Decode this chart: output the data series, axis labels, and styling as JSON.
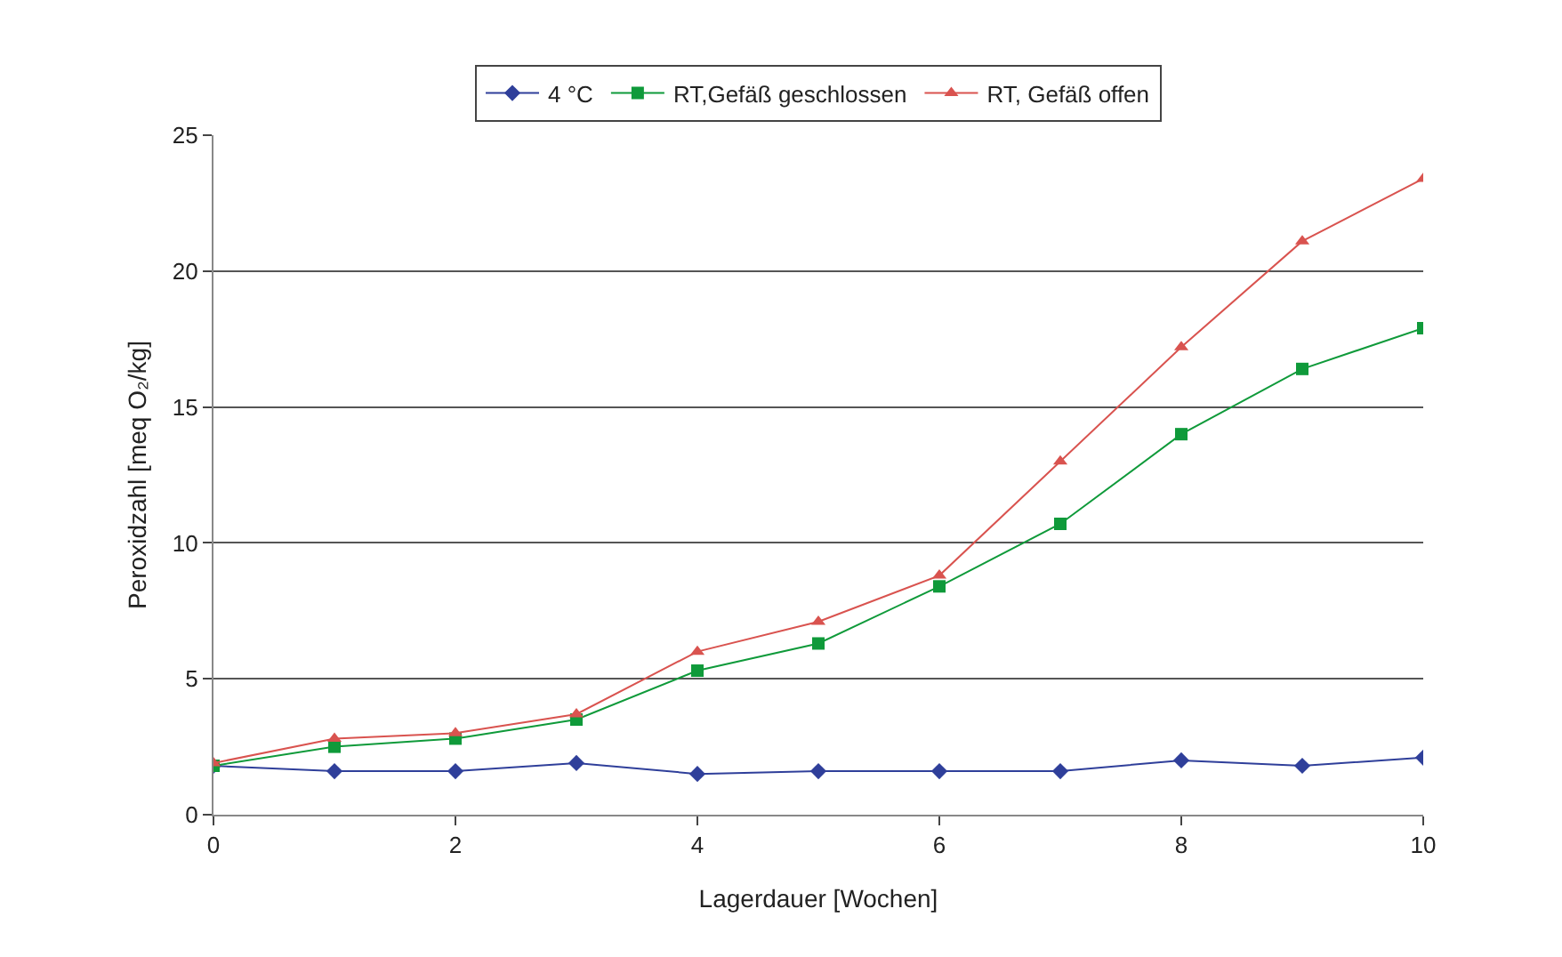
{
  "chart_data": {
    "type": "line",
    "xlabel": "Lagerdauer [Wochen]",
    "ylabel": "Peroxidzahl [meq O₂/kg]",
    "x": [
      0,
      1,
      2,
      3,
      4,
      5,
      6,
      7,
      8,
      9,
      10
    ],
    "series": [
      {
        "name": "4 °C",
        "color": "#2f3f9a",
        "marker": "diamond",
        "values": [
          1.8,
          1.6,
          1.6,
          1.9,
          1.5,
          1.6,
          1.6,
          1.6,
          2.0,
          1.8,
          2.1
        ]
      },
      {
        "name": "RT,Gefäß geschlossen",
        "color": "#0f9a3a",
        "marker": "square",
        "values": [
          1.8,
          2.5,
          2.8,
          3.5,
          5.3,
          6.3,
          8.4,
          10.7,
          14.0,
          16.4,
          17.9
        ]
      },
      {
        "name": "RT, Gefäß offen",
        "color": "#d9534f",
        "marker": "triangle",
        "values": [
          1.9,
          2.8,
          3.0,
          3.7,
          6.0,
          7.1,
          8.8,
          13.0,
          17.2,
          21.1,
          23.4
        ]
      }
    ],
    "xlim": [
      0,
      10
    ],
    "xticks": [
      0,
      2,
      4,
      6,
      8,
      10
    ],
    "ylim": [
      0,
      25
    ],
    "yticks": [
      0,
      5,
      10,
      15,
      20,
      25
    ],
    "grid": "y",
    "legend": "top",
    "line_style": "solid"
  }
}
